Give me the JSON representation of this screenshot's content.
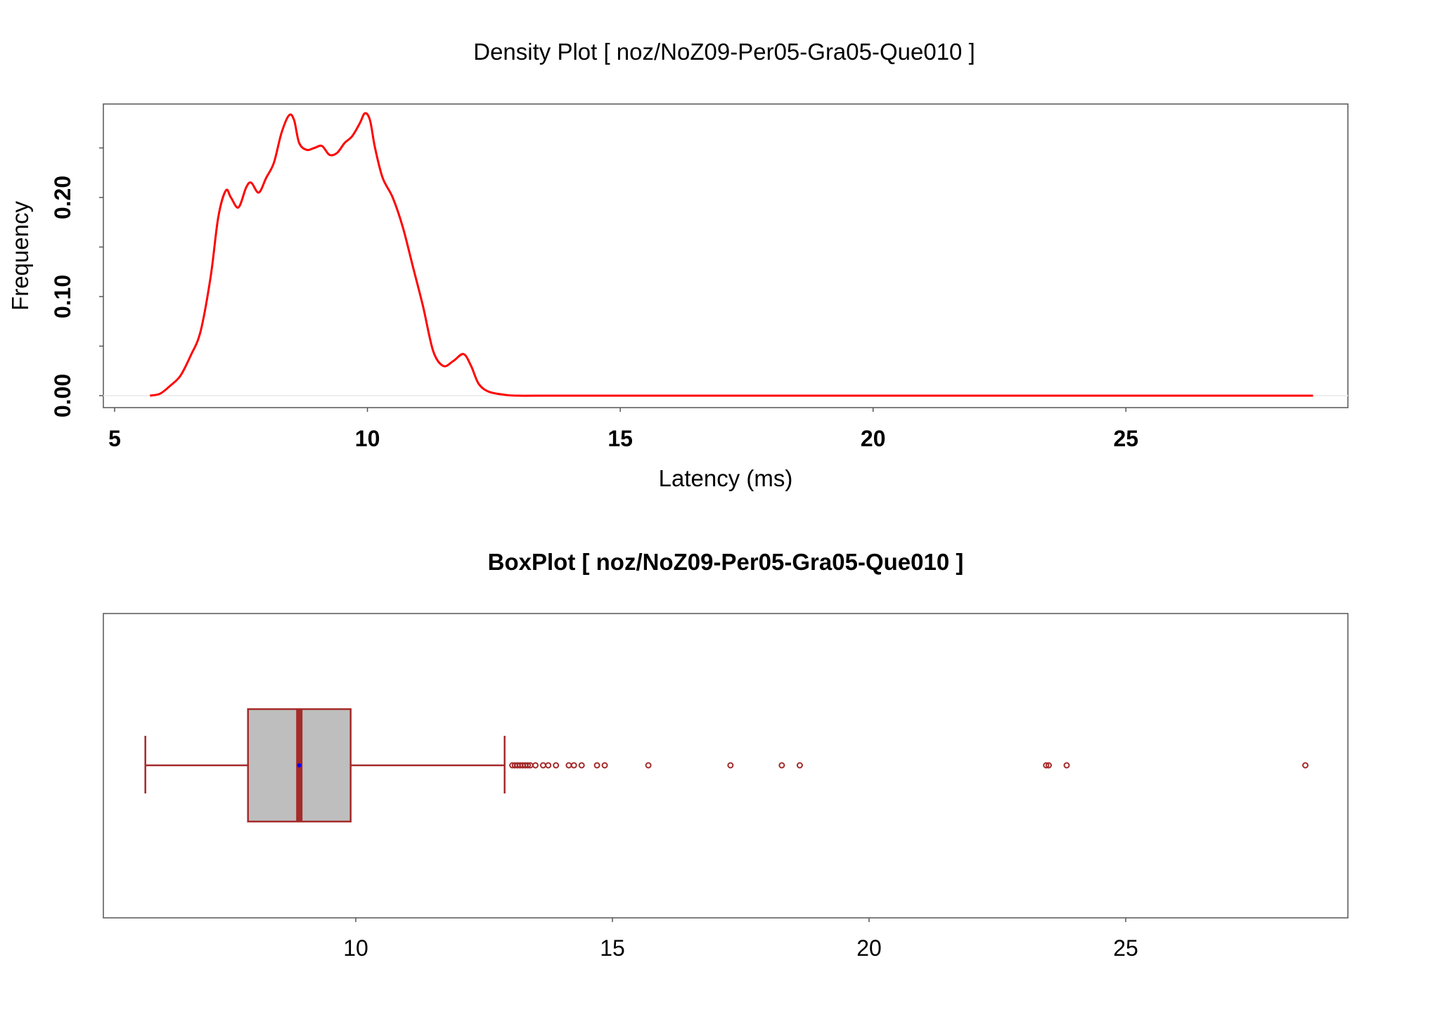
{
  "chart_data": [
    {
      "type": "line",
      "title": "Density Plot [ noz/NoZ09-Per05-Gra05-Que010 ]",
      "xlabel": "Latency (ms)",
      "ylabel": "Frequency",
      "xlim": [
        5,
        29
      ],
      "ylim": [
        0,
        0.29
      ],
      "x_ticks": [
        "5",
        "10",
        "15",
        "20",
        "25"
      ],
      "y_ticks": [
        "0.00",
        "0.10",
        "0.20"
      ],
      "line_color": "#ff0000",
      "series": [
        {
          "x": [
            5.7,
            5.9,
            6.1,
            6.3,
            6.5,
            6.7,
            6.9,
            7.05,
            7.2,
            7.3,
            7.45,
            7.6,
            7.7,
            7.85,
            8.0,
            8.15,
            8.3,
            8.45,
            8.55,
            8.65,
            8.8,
            8.95,
            9.1,
            9.25,
            9.4,
            9.55,
            9.7,
            9.85,
            9.95,
            10.05,
            10.15,
            10.3,
            10.5,
            10.7,
            10.9,
            11.1,
            11.3,
            11.5,
            11.7,
            11.9,
            12.05,
            12.2,
            12.4,
            12.7,
            13.0,
            14.0,
            17.0,
            20.0,
            24.0,
            28.7
          ],
          "y": [
            0.0,
            0.002,
            0.01,
            0.02,
            0.04,
            0.065,
            0.12,
            0.18,
            0.207,
            0.2,
            0.19,
            0.21,
            0.215,
            0.205,
            0.22,
            0.235,
            0.265,
            0.283,
            0.278,
            0.255,
            0.248,
            0.25,
            0.252,
            0.243,
            0.245,
            0.255,
            0.262,
            0.275,
            0.285,
            0.278,
            0.25,
            0.22,
            0.2,
            0.17,
            0.13,
            0.09,
            0.045,
            0.03,
            0.035,
            0.042,
            0.03,
            0.012,
            0.004,
            0.001,
            0.0,
            0.0,
            0.0,
            0.0,
            0.0,
            0.0
          ]
        }
      ]
    },
    {
      "type": "box",
      "title": "BoxPlot [ noz/NoZ09-Per05-Gra05-Que010 ]",
      "xlim": [
        5.0,
        29.3
      ],
      "x_ticks": [
        "10",
        "15",
        "20",
        "25"
      ],
      "box_color": "#a52a2a",
      "box_fill": "#bebebe",
      "whisker_low": 5.9,
      "q1": 7.9,
      "median": 8.9,
      "mean": 8.9,
      "q3": 9.9,
      "whisker_high": 12.9,
      "outliers": [
        13.05,
        13.1,
        13.15,
        13.2,
        13.25,
        13.3,
        13.35,
        13.4,
        13.5,
        13.65,
        13.75,
        13.9,
        14.15,
        14.25,
        14.4,
        14.7,
        14.85,
        15.7,
        17.3,
        18.3,
        18.65,
        23.45,
        23.5,
        23.85,
        28.5
      ]
    }
  ]
}
